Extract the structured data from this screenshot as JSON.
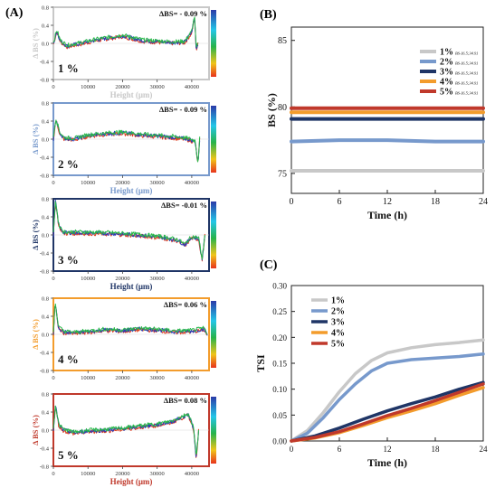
{
  "panel_labels": [
    "(A)",
    "(B)",
    "(C)"
  ],
  "chart_data": [
    {
      "id": "A1",
      "type": "line",
      "label": "1 %",
      "delta": "ΔBS= - 0.09 %",
      "ylabel": "Δ BS (%)",
      "xlabel": "Height (μm)",
      "color": "#c8c8c8",
      "xlim": [
        0,
        45000
      ],
      "ylim": [
        -0.8,
        0.8
      ],
      "xticks": [
        "0",
        "10000",
        "20000",
        "30000",
        "40000"
      ],
      "yticks": [
        "0.8",
        "0.4",
        "0.0",
        "-0.4",
        "-0.8"
      ],
      "profile": [
        [
          0,
          0.0
        ],
        [
          1000,
          0.28
        ],
        [
          2000,
          0.05
        ],
        [
          4000,
          -0.06
        ],
        [
          8000,
          0.0
        ],
        [
          12000,
          0.07
        ],
        [
          16000,
          0.12
        ],
        [
          20000,
          0.17
        ],
        [
          22000,
          0.13
        ],
        [
          26000,
          0.06
        ],
        [
          30000,
          0.04
        ],
        [
          34000,
          0.02
        ],
        [
          38000,
          0.03
        ],
        [
          40000,
          0.25
        ],
        [
          40800,
          0.6
        ],
        [
          41300,
          -0.15
        ],
        [
          41800,
          0.0
        ]
      ]
    },
    {
      "id": "A2",
      "type": "line",
      "label": "2 %",
      "delta": "ΔBS= - 0.09 %",
      "ylabel": "Δ BS (%)",
      "xlabel": "Height (μm)",
      "color": "#7799cc",
      "xlim": [
        0,
        45000
      ],
      "ylim": [
        -0.8,
        0.8
      ],
      "xticks": [
        "0",
        "10000",
        "20000",
        "30000",
        "40000"
      ],
      "yticks": [
        "0.8",
        "0.4",
        "0.0",
        "-0.4",
        "-0.8"
      ],
      "profile": [
        [
          0,
          0.0
        ],
        [
          700,
          0.45
        ],
        [
          1800,
          0.15
        ],
        [
          3000,
          0.02
        ],
        [
          6000,
          0.0
        ],
        [
          10000,
          0.08
        ],
        [
          15000,
          0.12
        ],
        [
          20000,
          0.14
        ],
        [
          25000,
          0.1
        ],
        [
          30000,
          0.07
        ],
        [
          35000,
          0.04
        ],
        [
          39000,
          0.0
        ],
        [
          41000,
          -0.05
        ],
        [
          41800,
          -0.55
        ],
        [
          42300,
          0.0
        ]
      ]
    },
    {
      "id": "A3",
      "type": "line",
      "label": "3 %",
      "delta": "ΔBS= -0.01 %",
      "ylabel": "Δ BS (%)",
      "xlabel": "Height (μm)",
      "color": "#1f3566",
      "xlim": [
        0,
        45000
      ],
      "ylim": [
        -0.8,
        0.8
      ],
      "xticks": [
        "0",
        "10000",
        "20000",
        "30000",
        "40000"
      ],
      "yticks": [
        "0.8",
        "0.4",
        "0.0",
        "-0.4",
        "-0.8"
      ],
      "profile": [
        [
          0,
          0.0
        ],
        [
          600,
          0.75
        ],
        [
          1600,
          0.2
        ],
        [
          3000,
          0.05
        ],
        [
          8000,
          0.05
        ],
        [
          14000,
          0.04
        ],
        [
          20000,
          0.02
        ],
        [
          26000,
          -0.01
        ],
        [
          32000,
          -0.06
        ],
        [
          36000,
          -0.12
        ],
        [
          38000,
          -0.22
        ],
        [
          40000,
          -0.05
        ],
        [
          42000,
          -0.08
        ],
        [
          43000,
          -0.55
        ],
        [
          43800,
          0.0
        ]
      ]
    },
    {
      "id": "A4",
      "type": "line",
      "label": "4 %",
      "delta": "ΔBS= 0.06 %",
      "ylabel": "Δ BS (%)",
      "xlabel": "",
      "color": "#f39c2c",
      "xlim": [
        0,
        45000
      ],
      "ylim": [
        -0.8,
        0.8
      ],
      "xticks": [
        "0",
        "10000",
        "20000",
        "30000",
        "40000"
      ],
      "yticks": [
        "0.8",
        "0.4",
        "0.0",
        "-0.4",
        "-0.8"
      ],
      "profile": [
        [
          0,
          0.0
        ],
        [
          500,
          0.7
        ],
        [
          1500,
          0.15
        ],
        [
          3000,
          0.05
        ],
        [
          6000,
          0.03
        ],
        [
          10000,
          0.06
        ],
        [
          15000,
          0.1
        ],
        [
          20000,
          0.08
        ],
        [
          25000,
          0.12
        ],
        [
          30000,
          0.1
        ],
        [
          35000,
          0.06
        ],
        [
          40000,
          0.07
        ],
        [
          43500,
          0.12
        ],
        [
          44500,
          0.0
        ]
      ]
    },
    {
      "id": "A5",
      "type": "line",
      "label": "5 %",
      "delta": "ΔBS= 0.08 %",
      "ylabel": "Δ BS (%)",
      "xlabel": "Height (μm)",
      "color": "#c0392b",
      "xlim": [
        0,
        45000
      ],
      "ylim": [
        -0.8,
        0.8
      ],
      "xticks": [
        "0",
        "10000",
        "20000",
        "30000",
        "40000"
      ],
      "yticks": [
        "0.8",
        "0.4",
        "0.0",
        "-0.4",
        "-0.8"
      ],
      "profile": [
        [
          0,
          0.0
        ],
        [
          600,
          0.55
        ],
        [
          1600,
          0.1
        ],
        [
          3000,
          0.0
        ],
        [
          6000,
          -0.06
        ],
        [
          10000,
          -0.02
        ],
        [
          15000,
          0.0
        ],
        [
          20000,
          0.03
        ],
        [
          25000,
          0.08
        ],
        [
          30000,
          0.12
        ],
        [
          34000,
          0.18
        ],
        [
          37000,
          0.28
        ],
        [
          39000,
          0.35
        ],
        [
          40500,
          0.05
        ],
        [
          41300,
          -0.6
        ],
        [
          42000,
          0.0
        ]
      ]
    },
    {
      "id": "B",
      "type": "line",
      "xlabel": "Time (h)",
      "ylabel": "BS (%)",
      "xlim": [
        0,
        24
      ],
      "ylim": [
        73.5,
        86
      ],
      "xticks": [
        0,
        6,
        12,
        18,
        24
      ],
      "yticks": [
        75,
        80,
        85
      ],
      "legend_placement": "top-right",
      "legend_suffix": "BS-[6.5;34.9]",
      "series": [
        {
          "name": "1%",
          "color": "#c8c8c8",
          "x": [
            0,
            24
          ],
          "y": [
            75.2,
            75.2
          ]
        },
        {
          "name": "2%",
          "color": "#7799cc",
          "x": [
            0,
            6,
            12,
            18,
            24
          ],
          "y": [
            77.4,
            77.5,
            77.5,
            77.4,
            77.4
          ]
        },
        {
          "name": "3%",
          "color": "#1f3566",
          "x": [
            0,
            24
          ],
          "y": [
            79.1,
            79.1
          ]
        },
        {
          "name": "4%",
          "color": "#f39c2c",
          "x": [
            0,
            24
          ],
          "y": [
            79.6,
            79.6
          ]
        },
        {
          "name": "5%",
          "color": "#c0392b",
          "x": [
            0,
            24
          ],
          "y": [
            79.9,
            79.9
          ]
        }
      ]
    },
    {
      "id": "C",
      "type": "line",
      "xlabel": "Time (h)",
      "ylabel": "TSI",
      "xlim": [
        0,
        24
      ],
      "ylim": [
        0,
        0.3
      ],
      "xticks": [
        0,
        6,
        12,
        18,
        24
      ],
      "yticks": [
        "0.00",
        "0.05",
        "0.10",
        "0.15",
        "0.20",
        "0.25",
        "0.30"
      ],
      "legend_placement": "top-left",
      "series": [
        {
          "name": "1%",
          "color": "#c8c8c8",
          "x": [
            0,
            2,
            4,
            6,
            8,
            10,
            12,
            15,
            18,
            21,
            24
          ],
          "y": [
            0,
            0.02,
            0.055,
            0.095,
            0.13,
            0.155,
            0.17,
            0.18,
            0.186,
            0.19,
            0.195
          ]
        },
        {
          "name": "2%",
          "color": "#7799cc",
          "x": [
            0,
            2,
            4,
            6,
            8,
            10,
            12,
            15,
            18,
            21,
            24
          ],
          "y": [
            0,
            0.015,
            0.045,
            0.08,
            0.11,
            0.135,
            0.15,
            0.157,
            0.16,
            0.163,
            0.168
          ]
        },
        {
          "name": "3%",
          "color": "#1f3566",
          "x": [
            0,
            3,
            6,
            9,
            12,
            15,
            18,
            21,
            24
          ],
          "y": [
            0,
            0.01,
            0.025,
            0.042,
            0.058,
            0.072,
            0.085,
            0.1,
            0.113
          ]
        },
        {
          "name": "4%",
          "color": "#f39c2c",
          "x": [
            0,
            3,
            6,
            9,
            12,
            15,
            18,
            21,
            24
          ],
          "y": [
            0,
            0.006,
            0.016,
            0.03,
            0.045,
            0.058,
            0.072,
            0.088,
            0.103
          ]
        },
        {
          "name": "5%",
          "color": "#c0392b",
          "x": [
            0,
            3,
            6,
            9,
            12,
            15,
            18,
            21,
            24
          ],
          "y": [
            0,
            0.007,
            0.018,
            0.033,
            0.049,
            0.063,
            0.078,
            0.094,
            0.11
          ]
        }
      ]
    }
  ]
}
